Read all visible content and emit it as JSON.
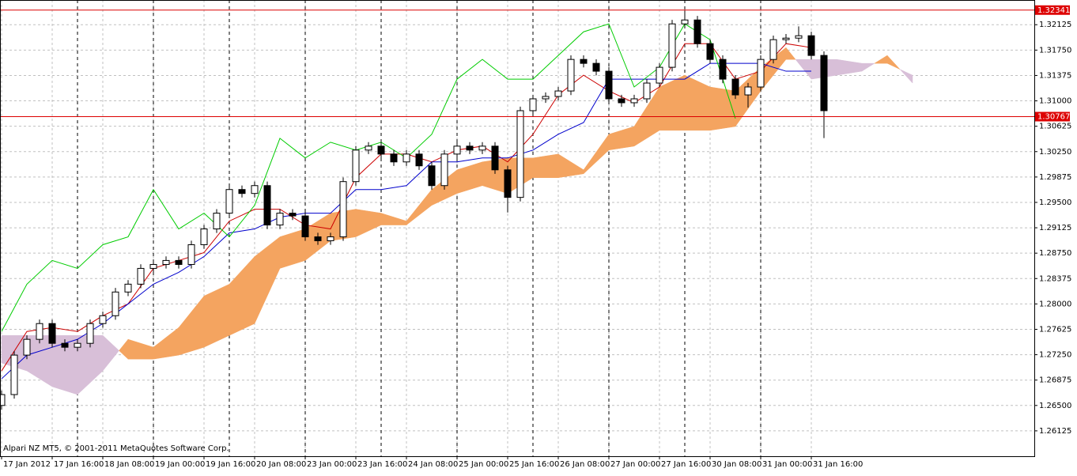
{
  "chart_data": {
    "type": "candlestick",
    "annotation": "Alpari NZ MT5, © 2001-2011 MetaQuotes Software Corp.",
    "x": [
      0,
      4,
      8,
      12,
      16,
      20,
      24,
      28,
      32,
      36,
      40,
      44,
      48,
      52,
      56,
      60,
      64,
      68,
      72,
      76,
      80,
      84,
      88,
      92,
      96,
      100,
      104,
      108,
      112,
      116,
      120,
      124,
      128,
      132,
      136,
      140,
      144,
      148,
      152,
      156,
      160,
      164,
      168,
      172,
      176,
      180,
      184,
      188,
      192,
      196,
      200,
      204,
      208,
      212,
      216,
      220,
      224,
      228,
      232,
      236,
      240,
      244,
      248,
      252,
      256,
      260
    ],
    "open": [
      1.265,
      1.26661,
      1.27244,
      1.27477,
      1.2771,
      1.27418,
      1.2736,
      1.27418,
      1.2771,
      1.27826,
      1.28176,
      1.28292,
      1.28525,
      1.28583,
      1.28642,
      1.28583,
      1.28875,
      1.29108,
      1.29341,
      1.2969,
      1.29632,
      1.29748,
      1.29166,
      1.29341,
      1.293,
      1.28991,
      1.28933,
      1.28991,
      1.29807,
      1.30273,
      1.30331,
      1.30214,
      1.30098,
      1.30214,
      1.3004,
      1.29748,
      1.30214,
      1.30331,
      1.30273,
      1.30331,
      1.29981,
      1.29574,
      1.30855,
      1.3103,
      1.31065,
      1.31146,
      1.31612,
      1.31554,
      1.31438,
      1.3103,
      1.30972,
      1.3103,
      1.31263,
      1.31496,
      1.32137,
      1.32195,
      1.31845,
      1.31612,
      1.31321,
      1.31088,
      1.31205,
      1.31612,
      1.31904,
      1.31927,
      1.31962,
      1.31671
    ],
    "high": [
      1.26721,
      1.27304,
      1.27537,
      1.2777,
      1.2777,
      1.27478,
      1.27478,
      1.2777,
      1.27886,
      1.28236,
      1.28352,
      1.28585,
      1.28643,
      1.28702,
      1.28702,
      1.28935,
      1.29168,
      1.29401,
      1.2975,
      1.2975,
      1.29808,
      1.29808,
      1.29401,
      1.29401,
      1.2936,
      1.29051,
      1.29051,
      1.29867,
      1.30333,
      1.30391,
      1.30391,
      1.30274,
      1.30274,
      1.30274,
      1.301,
      1.30274,
      1.30391,
      1.30391,
      1.30391,
      1.30391,
      1.30041,
      1.30915,
      1.3109,
      1.31125,
      1.31206,
      1.31672,
      1.31672,
      1.31614,
      1.31498,
      1.3109,
      1.3109,
      1.31323,
      1.31556,
      1.32197,
      1.32341,
      1.32255,
      1.31905,
      1.31672,
      1.31381,
      1.31265,
      1.31672,
      1.31964,
      1.31987,
      1.321,
      1.32022,
      1.31731
    ],
    "low": [
      1.2644,
      1.26601,
      1.27184,
      1.27417,
      1.27358,
      1.273,
      1.273,
      1.27358,
      1.2765,
      1.27766,
      1.28116,
      1.28232,
      1.28465,
      1.28523,
      1.28523,
      1.28523,
      1.28815,
      1.29048,
      1.29281,
      1.29572,
      1.29572,
      1.29106,
      1.29106,
      1.2924,
      1.28931,
      1.28873,
      1.28873,
      1.28931,
      1.29747,
      1.30213,
      1.30154,
      1.30038,
      1.30038,
      1.2998,
      1.29688,
      1.29688,
      1.30154,
      1.30213,
      1.30213,
      1.29921,
      1.2935,
      1.29514,
      1.30795,
      1.3097,
      1.31005,
      1.31086,
      1.31494,
      1.31378,
      1.3097,
      1.30912,
      1.30912,
      1.3097,
      1.31203,
      1.31436,
      1.32077,
      1.31785,
      1.31552,
      1.31261,
      1.31028,
      1.309,
      1.31145,
      1.31552,
      1.31844,
      1.31867,
      1.31611,
      1.3045
    ],
    "close": [
      1.26661,
      1.27244,
      1.27477,
      1.2771,
      1.27418,
      1.2736,
      1.27418,
      1.2771,
      1.27826,
      1.28176,
      1.28292,
      1.28525,
      1.28583,
      1.28642,
      1.28583,
      1.28875,
      1.29108,
      1.29341,
      1.2969,
      1.29632,
      1.29748,
      1.29166,
      1.29341,
      1.293,
      1.28991,
      1.28933,
      1.28991,
      1.29807,
      1.30273,
      1.30331,
      1.30214,
      1.30098,
      1.30214,
      1.3004,
      1.29748,
      1.30214,
      1.30331,
      1.30273,
      1.30331,
      1.29981,
      1.29574,
      1.30855,
      1.3103,
      1.31065,
      1.31146,
      1.31612,
      1.31554,
      1.31438,
      1.3103,
      1.30972,
      1.3103,
      1.31263,
      1.31496,
      1.32137,
      1.32195,
      1.31845,
      1.31612,
      1.31321,
      1.31088,
      1.31205,
      1.31612,
      1.31904,
      1.31927,
      1.31962,
      1.31671,
      1.30855
    ],
    "candle_color": "#000000",
    "bull_fill": "#ffffff",
    "xlim": [
      -0.5,
      326.5
    ],
    "xticks": [
      {
        "value": 0,
        "label": "17 Jan 2012"
      },
      {
        "value": 16,
        "label": "17 Jan 16:00"
      },
      {
        "value": 32,
        "label": "18 Jan 08:00"
      },
      {
        "value": 48,
        "label": "19 Jan 00:00"
      },
      {
        "value": 64,
        "label": "19 Jan 16:00"
      },
      {
        "value": 80,
        "label": "20 Jan 08:00"
      },
      {
        "value": 96,
        "label": "23 Jan 00:00"
      },
      {
        "value": 112,
        "label": "23 Jan 16:00"
      },
      {
        "value": 128,
        "label": "24 Jan 08:00"
      },
      {
        "value": 144,
        "label": "25 Jan 00:00"
      },
      {
        "value": 160,
        "label": "25 Jan 16:00"
      },
      {
        "value": 176,
        "label": "26 Jan 08:00"
      },
      {
        "value": 192,
        "label": "27 Jan 00:00"
      },
      {
        "value": 208,
        "label": "27 Jan 16:00"
      },
      {
        "value": 224,
        "label": "30 Jan 08:00"
      },
      {
        "value": 240,
        "label": "31 Jan 00:00"
      },
      {
        "value": 256,
        "label": "31 Jan 16:00"
      }
    ],
    "separators": [
      24,
      48,
      72,
      96,
      120,
      144,
      168,
      192,
      216,
      240
    ],
    "ylim": [
      1.2575,
      1.3249
    ],
    "yticks": [
      1.32125,
      {
        "value": 1.3175,
        "label": "1.31750"
      },
      1.31375,
      {
        "value": 1.31,
        "label": "1.31000"
      },
      1.30625,
      {
        "value": 1.3025,
        "label": "1.30250"
      },
      1.29875,
      {
        "value": 1.295,
        "label": "1.29500"
      },
      1.29125,
      {
        "value": 1.2875,
        "label": "1.28750"
      },
      1.28375,
      {
        "value": 1.28,
        "label": "1.28000"
      },
      1.27625,
      {
        "value": 1.2725,
        "label": "1.27250"
      },
      1.26875,
      {
        "value": 1.265,
        "label": "1.26500"
      },
      1.26125
    ],
    "grid": true,
    "hlines": [
      1.32341,
      1.30767
    ],
    "hline_color": "#dd0000",
    "lines": {
      "x": [
        0,
        8,
        16,
        24,
        32,
        40,
        48,
        56,
        64,
        72,
        80,
        88,
        96,
        104,
        112,
        120,
        128,
        136,
        144,
        152,
        160,
        168,
        176,
        184,
        192,
        200,
        208,
        216,
        224,
        232,
        240,
        248,
        256
      ],
      "series": [
        {
          "color": "#cc0000",
          "values": [
            1.27011,
            1.27593,
            1.27651,
            1.27593,
            1.27826,
            1.28001,
            1.28525,
            1.28642,
            1.28758,
            1.29224,
            1.29399,
            1.29399,
            1.29166,
            1.29108,
            1.29865,
            1.30214,
            1.30214,
            1.30098,
            1.30273,
            1.30331,
            1.30098,
            1.30506,
            1.31088,
            1.31379,
            1.31146,
            1.30972,
            1.31205,
            1.31845,
            1.31845,
            1.31321,
            1.31438,
            1.31845,
            1.31787
          ]
        },
        {
          "color": "#0000cc",
          "values": [
            1.26894,
            1.27244,
            1.2736,
            1.27477,
            1.2771,
            1.28001,
            1.28292,
            1.28467,
            1.287,
            1.29049,
            1.29108,
            1.29282,
            1.29341,
            1.29341,
            1.2969,
            1.2969,
            1.29748,
            1.30098,
            1.30098,
            1.30156,
            1.30156,
            1.30273,
            1.30506,
            1.3068,
            1.31321,
            1.31321,
            1.31321,
            1.31321,
            1.31554,
            1.31554,
            1.31554,
            1.31438,
            1.31438
          ]
        },
        {
          "color": "#00cc00",
          "values": [
            1.27593,
            1.28292,
            1.28642,
            1.28525,
            1.28875,
            1.28991,
            1.2969,
            1.29108,
            1.29341,
            1.28991,
            1.29457,
            1.30447,
            1.30156,
            1.30389,
            1.30273,
            1.30389,
            1.30156,
            1.30506,
            1.31321,
            1.31612,
            1.31321,
            1.31321,
            1.31671,
            1.3202,
            1.32137,
            1.31205,
            1.31496,
            1.32137,
            1.31904,
            1.30739,
            null,
            null,
            null
          ]
        }
      ]
    },
    "cloud": {
      "x": [
        0,
        8,
        16,
        24,
        32,
        40,
        48,
        56,
        64,
        72,
        80,
        88,
        96,
        104,
        112,
        120,
        128,
        136,
        144,
        152,
        160,
        168,
        176,
        184,
        192,
        200,
        208,
        216,
        224,
        232,
        240,
        248,
        256,
        264,
        272,
        280,
        288
      ],
      "span_a": [
        1.27127,
        1.27011,
        1.26778,
        1.26661,
        1.27011,
        1.27477,
        1.2736,
        1.27651,
        1.28117,
        1.28292,
        1.287,
        1.28991,
        1.29108,
        1.29341,
        1.29399,
        1.29341,
        1.29224,
        1.2969,
        1.29981,
        1.30098,
        1.30156,
        1.30156,
        1.30214,
        1.29981,
        1.30506,
        1.30622,
        1.31205,
        1.31379,
        1.31205,
        1.31146,
        1.31496,
        1.31787,
        1.31321,
        1.31379,
        1.31438,
        1.31671,
        1.31263
      ],
      "span_b": [
        1.27535,
        1.27535,
        1.27535,
        1.27535,
        1.27535,
        1.27185,
        1.27185,
        1.27244,
        1.2736,
        1.27535,
        1.2771,
        1.28525,
        1.28642,
        1.28933,
        1.28991,
        1.29166,
        1.29166,
        1.29457,
        1.29632,
        1.29748,
        1.29632,
        1.29865,
        1.29865,
        1.29923,
        1.30273,
        1.30331,
        1.30564,
        1.30564,
        1.30564,
        1.30622,
        1.31146,
        1.31612,
        1.31612,
        1.31612,
        1.31554,
        1.31554,
        1.31379
      ],
      "up_color": "#f4a460",
      "down_color": "#d8bfd8"
    }
  }
}
